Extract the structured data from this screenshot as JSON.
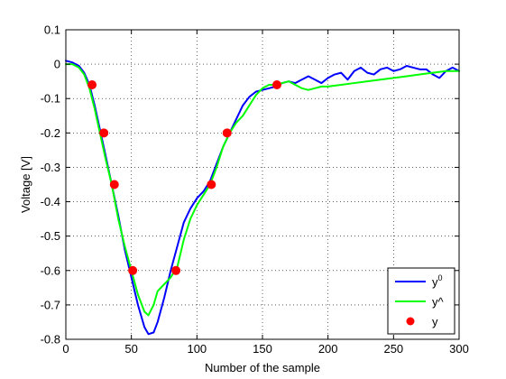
{
  "chart_data": {
    "type": "line",
    "title": "",
    "xlabel": "Number of the sample",
    "ylabel": "Voltage [V]",
    "xlim": [
      0,
      300
    ],
    "ylim": [
      -0.8,
      0.1
    ],
    "grid": true,
    "legend_position": "bottom-right",
    "x_ticks": [
      0,
      50,
      100,
      150,
      200,
      250,
      300
    ],
    "x_tick_labels": [
      "0",
      "50",
      "100",
      "150",
      "200",
      "250",
      "300"
    ],
    "y_ticks": [
      0.1,
      0,
      -0.1,
      -0.2,
      -0.3,
      -0.4,
      -0.5,
      -0.6,
      -0.7,
      -0.8
    ],
    "y_tick_labels": [
      "0.1",
      "0",
      "-0.1",
      "-0.2",
      "-0.3",
      "-0.4",
      "-0.5",
      "-0.6",
      "-0.7",
      "-0.8"
    ],
    "series": [
      {
        "name": "y",
        "name_superscript": "0",
        "style": "line",
        "color": "#0000ff",
        "x": [
          0,
          5,
          10,
          14,
          18,
          22,
          26,
          30,
          35,
          40,
          45,
          50,
          55,
          60,
          63,
          67,
          70,
          75,
          80,
          85,
          90,
          95,
          100,
          105,
          110,
          115,
          120,
          125,
          130,
          135,
          140,
          145,
          150,
          155,
          160,
          165,
          170,
          175,
          180,
          185,
          190,
          195,
          200,
          205,
          210,
          215,
          220,
          225,
          230,
          235,
          240,
          245,
          250,
          255,
          260,
          265,
          270,
          275,
          280,
          285,
          290,
          295,
          300
        ],
        "values": [
          0.01,
          0.005,
          -0.005,
          -0.025,
          -0.06,
          -0.12,
          -0.19,
          -0.26,
          -0.35,
          -0.44,
          -0.54,
          -0.62,
          -0.7,
          -0.765,
          -0.785,
          -0.78,
          -0.75,
          -0.68,
          -0.6,
          -0.53,
          -0.46,
          -0.42,
          -0.39,
          -0.37,
          -0.34,
          -0.29,
          -0.24,
          -0.2,
          -0.16,
          -0.12,
          -0.095,
          -0.08,
          -0.075,
          -0.07,
          -0.065,
          -0.055,
          -0.05,
          -0.055,
          -0.045,
          -0.035,
          -0.045,
          -0.055,
          -0.04,
          -0.03,
          -0.025,
          -0.045,
          -0.02,
          -0.01,
          -0.025,
          -0.03,
          -0.015,
          -0.01,
          -0.02,
          -0.015,
          -0.005,
          -0.01,
          -0.015,
          -0.015,
          -0.03,
          -0.04,
          -0.02,
          -0.01,
          -0.02
        ]
      },
      {
        "name": "y^",
        "style": "line",
        "color": "#00ff00",
        "x": [
          0,
          5,
          10,
          14,
          18,
          22,
          26,
          30,
          35,
          40,
          45,
          50,
          55,
          60,
          63,
          67,
          70,
          75,
          80,
          85,
          90,
          95,
          100,
          105,
          110,
          115,
          120,
          125,
          130,
          135,
          140,
          145,
          150,
          155,
          160,
          165,
          170,
          175,
          180,
          185,
          190,
          195,
          200,
          210,
          220,
          230,
          240,
          250,
          260,
          270,
          280,
          290,
          300
        ],
        "values": [
          0,
          0,
          -0.01,
          -0.03,
          -0.07,
          -0.13,
          -0.2,
          -0.27,
          -0.35,
          -0.45,
          -0.53,
          -0.6,
          -0.67,
          -0.72,
          -0.73,
          -0.7,
          -0.66,
          -0.64,
          -0.62,
          -0.59,
          -0.51,
          -0.45,
          -0.41,
          -0.38,
          -0.35,
          -0.3,
          -0.24,
          -0.2,
          -0.17,
          -0.15,
          -0.12,
          -0.09,
          -0.07,
          -0.06,
          -0.06,
          -0.055,
          -0.05,
          -0.06,
          -0.07,
          -0.075,
          -0.07,
          -0.065,
          -0.065,
          -0.06,
          -0.055,
          -0.05,
          -0.045,
          -0.04,
          -0.035,
          -0.03,
          -0.025,
          -0.02,
          -0.02
        ]
      },
      {
        "name": "y",
        "style": "markers",
        "color": "#ff0000",
        "x": [
          20,
          29,
          37,
          51,
          84,
          111,
          123,
          161
        ],
        "values": [
          -0.06,
          -0.2,
          -0.35,
          -0.6,
          -0.6,
          -0.35,
          -0.2,
          -0.06
        ]
      }
    ]
  }
}
